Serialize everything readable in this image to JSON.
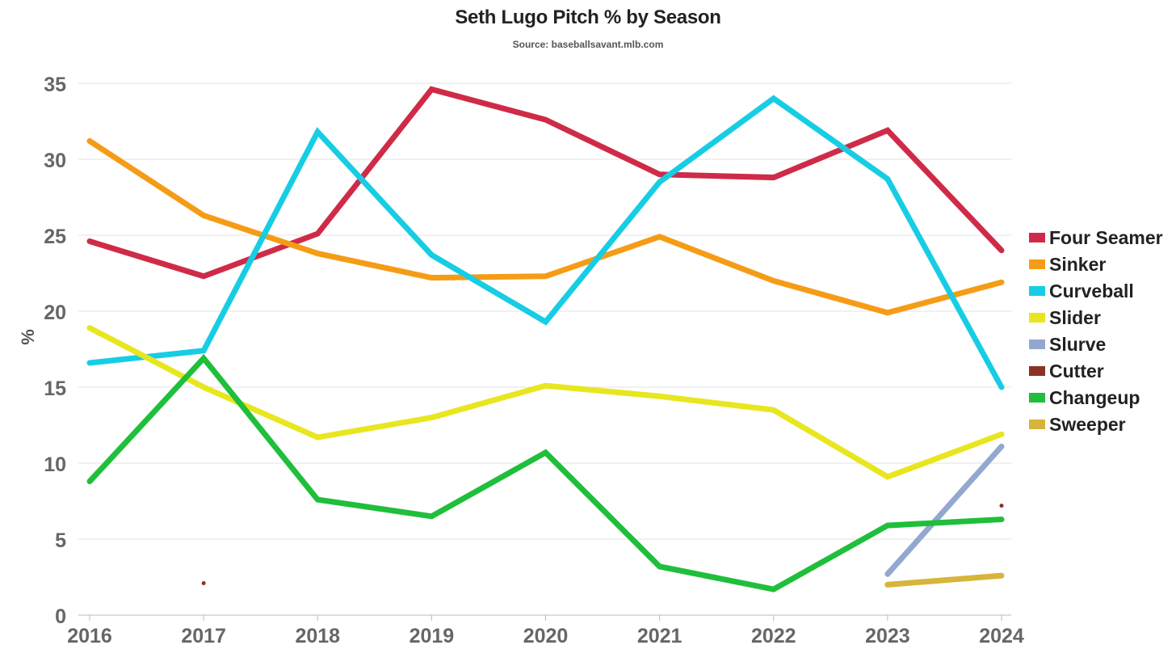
{
  "chart_data": {
    "type": "line",
    "title": "Seth Lugo Pitch % by Season",
    "subtitle": "Source: baseballsavant.mlb.com",
    "xlabel": "",
    "ylabel": "%",
    "x": [
      "2016",
      "2017",
      "2018",
      "2019",
      "2020",
      "2021",
      "2022",
      "2023",
      "2024"
    ],
    "yticks": [
      "0",
      "5",
      "10",
      "15",
      "20",
      "25",
      "30",
      "35"
    ],
    "ylim": [
      0,
      35
    ],
    "grid": true,
    "legend_position": "right",
    "series": [
      {
        "name": "Four Seamer",
        "color": "#cf2b48",
        "values": [
          24.6,
          22.3,
          25.1,
          34.6,
          32.6,
          29.0,
          28.8,
          31.9,
          24.0
        ]
      },
      {
        "name": "Sinker",
        "color": "#f59c16",
        "values": [
          31.2,
          26.3,
          23.8,
          22.2,
          22.3,
          24.9,
          22.0,
          19.9,
          21.9
        ]
      },
      {
        "name": "Curveball",
        "color": "#17cde4",
        "values": [
          16.6,
          17.4,
          31.8,
          23.7,
          19.3,
          28.5,
          34.0,
          28.7,
          15.0
        ]
      },
      {
        "name": "Slider",
        "color": "#e8e61f",
        "values": [
          18.9,
          15.0,
          11.7,
          13.0,
          15.1,
          14.4,
          13.5,
          9.1,
          11.9
        ]
      },
      {
        "name": "Slurve",
        "color": "#93a8d0",
        "values": [
          null,
          null,
          null,
          null,
          null,
          null,
          null,
          2.7,
          11.1
        ]
      },
      {
        "name": "Cutter",
        "color": "#8a3324",
        "values": [
          null,
          2.1,
          null,
          null,
          null,
          null,
          null,
          null,
          7.2
        ]
      },
      {
        "name": "Changeup",
        "color": "#1fbf3b",
        "values": [
          8.8,
          16.9,
          7.6,
          6.5,
          10.7,
          3.2,
          1.7,
          5.9,
          6.3
        ]
      },
      {
        "name": "Sweeper",
        "color": "#d7b43a",
        "values": [
          null,
          null,
          null,
          null,
          null,
          null,
          null,
          2.0,
          2.6
        ]
      }
    ]
  }
}
